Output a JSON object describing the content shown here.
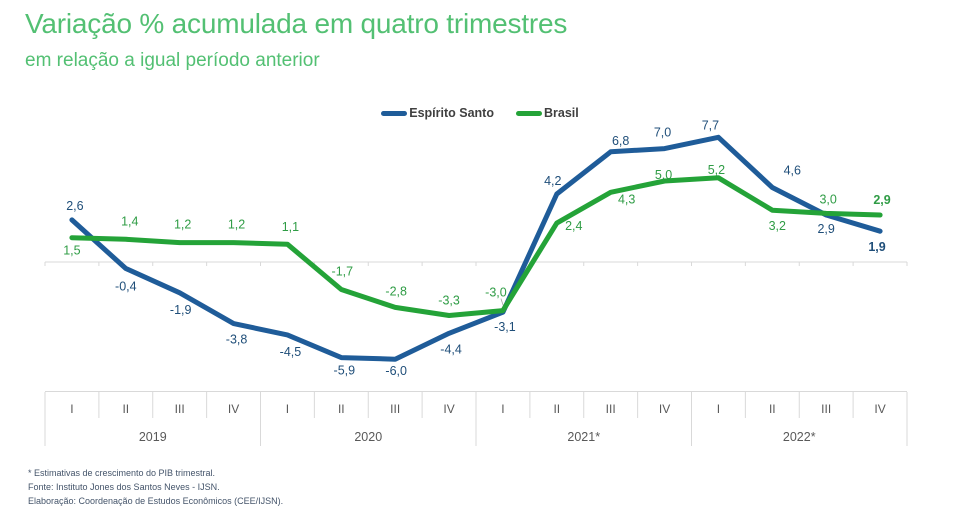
{
  "header": {
    "title": "Variação % acumulada em quatro trimestres",
    "subtitle": "em relação a igual período anterior"
  },
  "legend": [
    {
      "label": "Espírito Santo",
      "color": "#1F5C99"
    },
    {
      "label": "Brasil",
      "color": "#24A338"
    }
  ],
  "chart_data": {
    "type": "line",
    "title": "Variação % acumulada em quatro trimestres",
    "subtitle": "em relação a igual período anterior",
    "quarter_labels": [
      "I",
      "II",
      "III",
      "IV"
    ],
    "years": [
      "2019",
      "2020",
      "2021*",
      "2022*"
    ],
    "ylim": [
      -7,
      9
    ],
    "grid": false,
    "legend_position": "top-center",
    "baseline_value": 0,
    "series": [
      {
        "name": "Espírito Santo",
        "color": "#1F5C99",
        "label_color": "#1F4E79",
        "values": [
          2.6,
          -0.4,
          -1.9,
          -3.8,
          -4.5,
          -5.9,
          -6.0,
          -4.4,
          -3.1,
          4.2,
          6.8,
          7.0,
          7.7,
          4.6,
          2.9,
          1.9
        ],
        "labels": [
          "2,6",
          "-0,4",
          "-1,9",
          "-3,8",
          "-4,5",
          "-5,9",
          "-6,0",
          "-4,4",
          "-3,1",
          "4,2",
          "6,8",
          "7,0",
          "7,7",
          "4,6",
          "2,9",
          "1,9"
        ]
      },
      {
        "name": "Brasil",
        "color": "#24A338",
        "label_color": "#2F9C45",
        "values": [
          1.5,
          1.4,
          1.2,
          1.2,
          1.1,
          -1.7,
          -2.8,
          -3.3,
          -3.0,
          2.4,
          4.3,
          5.0,
          5.2,
          3.2,
          3.0,
          2.9
        ],
        "labels": [
          "1,5",
          "1,4",
          "1,2",
          "1,2",
          "1,1",
          "-1,7",
          "-2,8",
          "-3,3",
          "-3,0",
          "2,4",
          "4,3",
          "5,0",
          "5,2",
          "3,2",
          "3,0",
          "2,9"
        ]
      }
    ],
    "axis_color": "#D9D9D9",
    "axis_text_color": "#595959"
  },
  "footnotes": [
    "* Estimativas de crescimento do PIB trimestral.",
    "Fonte: Instituto Jones dos Santos Neves - IJSN.",
    "Elaboração: Coordenação de Estudos Econômicos (CEE/IJSN)."
  ]
}
